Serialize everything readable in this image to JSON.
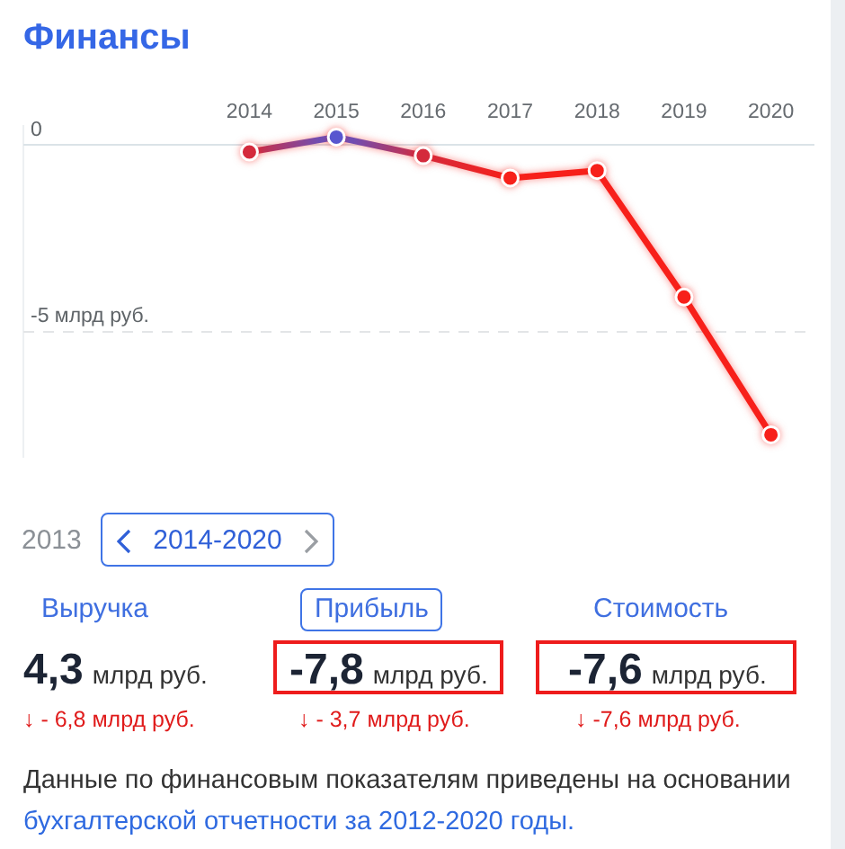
{
  "chart_data": [
    {
      "type": "line",
      "title": "Финансы",
      "x": [
        2014,
        2015,
        2016,
        2017,
        2018,
        2019,
        2020
      ],
      "xlim": [
        2011.4,
        2020.5
      ],
      "xticks": [
        2014,
        2015,
        2016,
        2017,
        2018,
        2019,
        2020
      ],
      "ylim": [
        -8.4,
        0.5
      ],
      "yticks": [
        0,
        {
          "value": -5,
          "label": "-5 млрд руб."
        }
      ],
      "grid": "y",
      "marker": "circle",
      "line_style": "solid",
      "series": [
        {
          "color": "#f7201a",
          "colors": [
            "#d42a3c",
            "#5856cf",
            "#d42a3c",
            "#f7201a",
            "#f7201a",
            "#f7201a",
            "#f7201a"
          ],
          "values": [
            -0.2,
            0.2,
            -0.3,
            -0.9,
            -0.7,
            -4.1,
            -7.8
          ]
        }
      ]
    },
    {
      "type": "other",
      "annotations": [
        "2013",
        "2014-2020",
        "Выручка",
        "Прибыль",
        "Стоимость",
        "4,3 млрд руб.",
        "-7,8 млрд руб.",
        "-7,6 млрд руб.",
        "↓ - 6,8 млрд руб.",
        "↓ - 3,7 млрд руб.",
        "↓ -7,6 млрд руб.",
        "Данные по финансовым показателям приведены на основании",
        "бухгалтерской отчетности за 2012-2020 годы."
      ]
    }
  ]
}
